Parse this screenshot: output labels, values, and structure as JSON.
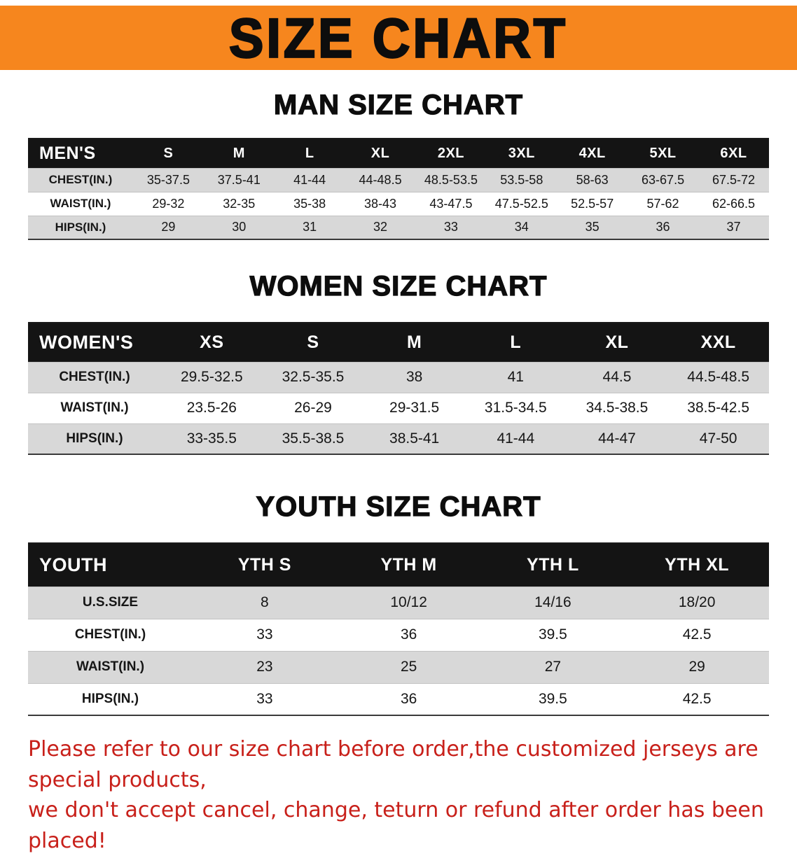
{
  "colors": {
    "banner-bg": "#f6861e",
    "header-bar": "#141414",
    "row-shade": "#d8d8d8",
    "note-red": "#c8201a"
  },
  "banner": {
    "title": "SIZE CHART"
  },
  "sections": [
    {
      "id": "men",
      "heading": "MAN SIZE CHART",
      "header_label": "MEN'S",
      "columns": [
        "S",
        "M",
        "L",
        "XL",
        "2XL",
        "3XL",
        "4XL",
        "5XL",
        "6XL"
      ],
      "rows": [
        {
          "label": "CHEST(IN.)",
          "values": [
            "35-37.5",
            "37.5-41",
            "41-44",
            "44-48.5",
            "48.5-53.5",
            "53.5-58",
            "58-63",
            "63-67.5",
            "67.5-72"
          ]
        },
        {
          "label": "WAIST(IN.)",
          "values": [
            "29-32",
            "32-35",
            "35-38",
            "38-43",
            "43-47.5",
            "47.5-52.5",
            "52.5-57",
            "57-62",
            "62-66.5"
          ]
        },
        {
          "label": "HIPS(IN.)",
          "values": [
            "29",
            "30",
            "31",
            "32",
            "33",
            "34",
            "35",
            "36",
            "37"
          ]
        }
      ]
    },
    {
      "id": "women",
      "heading": "WOMEN SIZE CHART",
      "header_label": "WOMEN'S",
      "columns": [
        "XS",
        "S",
        "M",
        "L",
        "XL",
        "XXL"
      ],
      "rows": [
        {
          "label": "CHEST(IN.)",
          "values": [
            "29.5-32.5",
            "32.5-35.5",
            "38",
            "41",
            "44.5",
            "44.5-48.5"
          ]
        },
        {
          "label": "WAIST(IN.)",
          "values": [
            "23.5-26",
            "26-29",
            "29-31.5",
            "31.5-34.5",
            "34.5-38.5",
            "38.5-42.5"
          ]
        },
        {
          "label": "HIPS(IN.)",
          "values": [
            "33-35.5",
            "35.5-38.5",
            "38.5-41",
            "41-44",
            "44-47",
            "47-50"
          ]
        }
      ]
    },
    {
      "id": "youth",
      "heading": "YOUTH SIZE CHART",
      "header_label": "YOUTH",
      "columns": [
        "YTH S",
        "YTH M",
        "YTH L",
        "YTH XL"
      ],
      "rows": [
        {
          "label": "U.S.SIZE",
          "values": [
            "8",
            "10/12",
            "14/16",
            "18/20"
          ]
        },
        {
          "label": "CHEST(IN.)",
          "values": [
            "33",
            "36",
            "39.5",
            "42.5"
          ]
        },
        {
          "label": "WAIST(IN.)",
          "values": [
            "23",
            "25",
            "27",
            "29"
          ]
        },
        {
          "label": "HIPS(IN.)",
          "values": [
            "33",
            "36",
            "39.5",
            "42.5"
          ]
        }
      ]
    }
  ],
  "footer": {
    "line1": "Please refer to our size chart before order,the customized jerseys are special products,",
    "line2": "we don't accept cancel, change, teturn or refund after order has been placed!"
  }
}
